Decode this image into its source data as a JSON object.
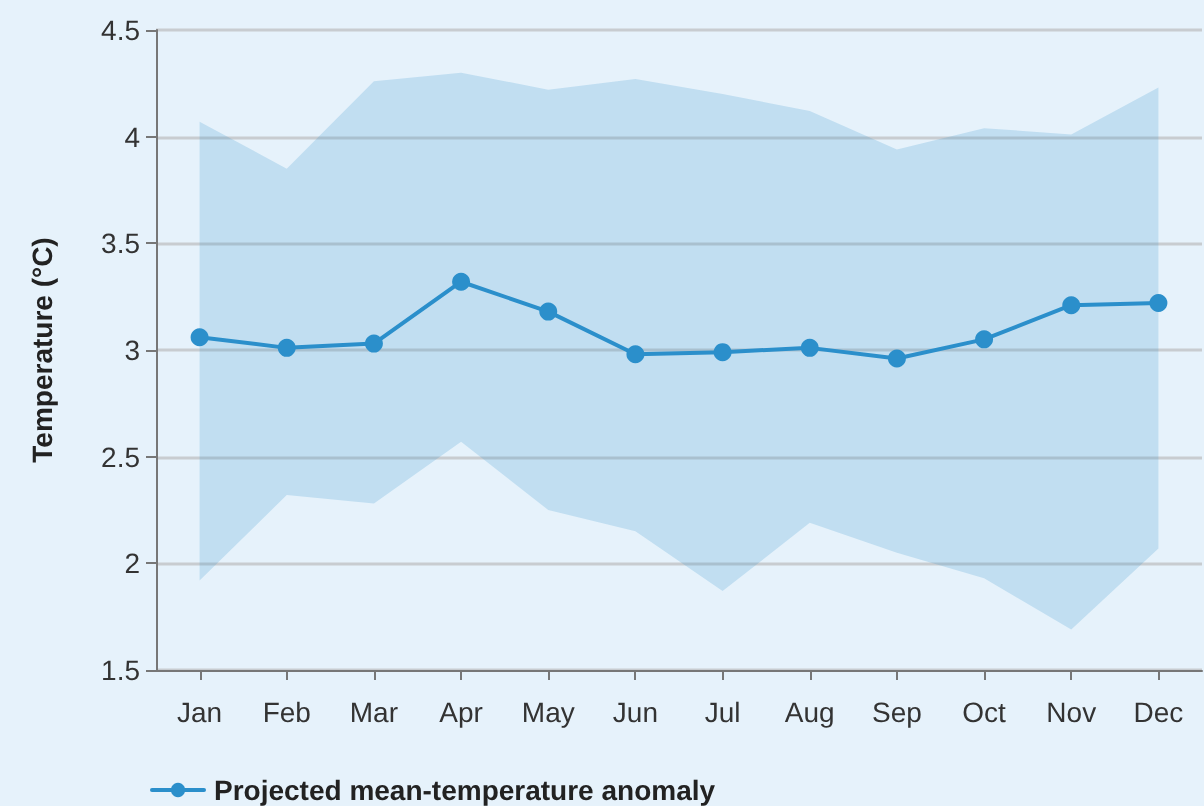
{
  "chart_data": {
    "type": "line",
    "ylabel": "Temperature (°C)",
    "categories": [
      "Jan",
      "Feb",
      "Mar",
      "Apr",
      "May",
      "Jun",
      "Jul",
      "Aug",
      "Sep",
      "Oct",
      "Nov",
      "Dec"
    ],
    "series": [
      {
        "name": "Projected mean-temperature anomaly",
        "color": "#2b8fcb",
        "values": [
          3.06,
          3.01,
          3.03,
          3.32,
          3.18,
          2.98,
          2.99,
          3.01,
          2.96,
          3.05,
          3.21,
          3.22
        ],
        "lower": [
          1.92,
          2.32,
          2.28,
          2.57,
          2.25,
          2.15,
          1.87,
          2.19,
          2.05,
          1.93,
          1.69,
          2.07
        ],
        "upper": [
          4.07,
          3.85,
          4.26,
          4.3,
          4.22,
          4.27,
          4.2,
          4.12,
          3.94,
          4.04,
          4.01,
          4.23
        ]
      }
    ],
    "ylim": [
      1.5,
      4.5
    ],
    "yticks": [
      1.5,
      2,
      2.5,
      3,
      3.5,
      4,
      4.5
    ],
    "grid": "y",
    "legend": "bottom left",
    "marker": "circle",
    "line_style": "solid"
  }
}
